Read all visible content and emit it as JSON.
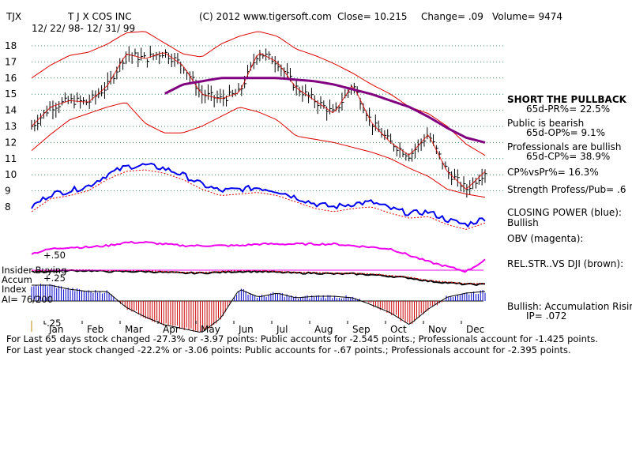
{
  "header": {
    "ticker": "TJX",
    "company": "T J X COS INC",
    "copyright": "(C) 2012 www.tigersoft.com",
    "close_text": "Close=  10.215",
    "change_text": "Change= .09",
    "volume_text": "Volume= 9474",
    "date_range": "12/ 22/ 98- 12/ 31/ 99"
  },
  "right_panel": {
    "l1": "SHORT THE PULLBACK",
    "l2": "65d-PR%= 22.5%",
    "l3": "Public is bearish",
    "l4": "65d-OP%= 9.1%",
    "l5": "Professionals are bullish",
    "l6": "65d-CP%= 38.9%",
    "l7": "CP%vsPr%=  16.3%",
    "l8": "Strength Profess/Pub= .6",
    "l9": "CLOSING POWER (blue):",
    "l10": "Bullish",
    "l11": "OBV (magenta):",
    "l12": "REL.STR..VS DJI (brown):",
    "l13": "Bullish: Accumulation Rising",
    "l14": "IP=  .072"
  },
  "left_panel": {
    "plus50": "+.50",
    "insider": "Insider Buying",
    "accum": "Accum",
    "plus25": "+.25",
    "index": "Index",
    "ai": "AI= 76/200",
    "minus25": "-.25"
  },
  "footer": {
    "line1": "For Last 65 days stock changed -27.3% or -3.97 points:  Public accounts for -2.545 points.;  Professionals account for -1.425 points.",
    "line2": "For Last year stock changed -22.2% or -3.06 points:  Public accounts for -.67 points.;  Professionals account for -2.395 points."
  },
  "colors": {
    "price": "#000000",
    "band": "#dd0000",
    "ma": "#800080",
    "closing_power": "#0000ee",
    "obv": "#ee00ee",
    "relstr": "#7b3a10",
    "accum_pos": "#0000cc",
    "accum_neg": "#cc0000",
    "grid": "#2e8b57"
  },
  "chart_data": {
    "type": "line",
    "title": "T J X COS INC",
    "date_range": "12/ 22/ 98- 12/ 31/ 99",
    "x_labels": [
      "Jan",
      "Feb",
      "Mar",
      "Apr",
      "May",
      "Jun",
      "Jul",
      "Aug",
      "Sep",
      "Oct",
      "Nov",
      "Dec"
    ],
    "price_axis": {
      "min": 8,
      "max": 18,
      "ticks": [
        18,
        17,
        16,
        15,
        14,
        13,
        12,
        11,
        10,
        9,
        8
      ]
    },
    "price_close": [
      13.0,
      14.2,
      14.6,
      14.5,
      15.5,
      17.5,
      17.2,
      17.6,
      16.8,
      15.0,
      14.7,
      15.1,
      17.6,
      17.0,
      15.4,
      14.6,
      13.8,
      15.6,
      13.2,
      12.0,
      11.2,
      12.5,
      10.2,
      9.1,
      10.2
    ],
    "band_upper": [
      16.0,
      16.8,
      17.4,
      17.6,
      18.1,
      18.8,
      18.9,
      18.2,
      17.5,
      17.3,
      18.1,
      18.6,
      18.9,
      18.6,
      17.8,
      17.4,
      16.9,
      16.3,
      15.6,
      15.0,
      14.2,
      13.8,
      13.0,
      11.9,
      11.2
    ],
    "band_lower": [
      11.5,
      12.5,
      13.4,
      13.8,
      14.2,
      14.5,
      13.2,
      12.6,
      12.6,
      13.0,
      13.6,
      14.2,
      13.9,
      13.4,
      12.4,
      12.2,
      12.0,
      11.7,
      11.4,
      11.0,
      10.4,
      9.9,
      9.1,
      8.8,
      8.6
    ],
    "ma_200": [
      null,
      null,
      null,
      null,
      null,
      null,
      null,
      15.0,
      15.6,
      15.8,
      16.0,
      16.0,
      16.0,
      16.0,
      15.9,
      15.8,
      15.6,
      15.3,
      15.0,
      14.6,
      14.2,
      13.6,
      12.9,
      12.3,
      12.0
    ],
    "closing_power": [
      8.0,
      8.8,
      9.0,
      9.3,
      10.0,
      10.5,
      10.6,
      10.4,
      10.0,
      9.4,
      9.0,
      9.1,
      9.2,
      9.0,
      8.6,
      8.2,
      8.0,
      8.2,
      8.3,
      7.9,
      7.6,
      7.7,
      7.2,
      6.9,
      7.3
    ],
    "obv": [
      5.1,
      5.4,
      5.5,
      5.5,
      5.6,
      5.8,
      5.8,
      5.7,
      5.6,
      5.6,
      5.6,
      5.6,
      5.7,
      5.7,
      5.7,
      5.7,
      5.7,
      5.6,
      5.5,
      5.4,
      5.0,
      4.6,
      4.3,
      4.0,
      4.7
    ],
    "rel_strength": [
      4.0,
      4.0,
      4.05,
      4.05,
      4.0,
      4.0,
      4.0,
      3.95,
      3.9,
      3.9,
      3.95,
      4.0,
      4.0,
      3.95,
      3.9,
      3.9,
      3.85,
      3.85,
      3.8,
      3.7,
      3.6,
      3.4,
      3.3,
      3.2,
      3.2
    ],
    "accum_index_axis": {
      "min": -0.25,
      "max": 0.5,
      "ticks": [
        0.5,
        0.25,
        -0.25
      ]
    },
    "accum_index": [
      0.2,
      0.2,
      0.15,
      0.12,
      0.12,
      -0.08,
      -0.2,
      -0.3,
      -0.35,
      -0.4,
      -0.22,
      0.15,
      0.05,
      0.1,
      0.04,
      0.06,
      0.06,
      0.04,
      -0.05,
      -0.15,
      -0.3,
      -0.1,
      0.05,
      0.1,
      0.12
    ]
  }
}
